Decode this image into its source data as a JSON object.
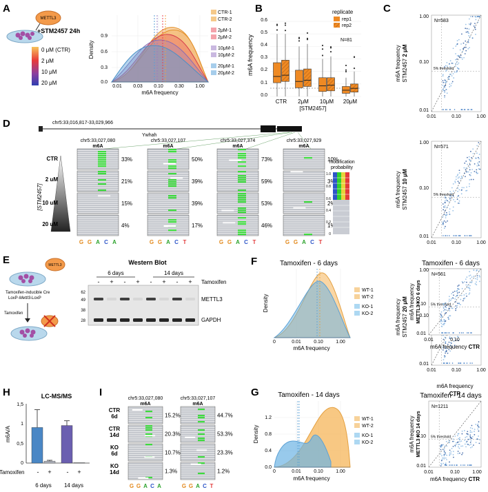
{
  "panels": {
    "A": "A",
    "B": "B",
    "C": "C",
    "D": "D",
    "E": "E",
    "F": "F",
    "G": "G",
    "H": "H",
    "I": "I"
  },
  "colors": {
    "ctr": "#f0a040",
    "d2": "#e84050",
    "d10": "#9a7cc2",
    "d20": "#5a9fd6",
    "wt": "#f5b55a",
    "ko": "#6cb4e4",
    "orange": "#ef8a24",
    "blue": "#4a87c5",
    "purple": "#6b5fb0",
    "grey": "#b4b8c2",
    "green": "#3ddc3d"
  },
  "A": {
    "enzyme": "METTL3",
    "treatment": "+STM2457 24h",
    "gradient_labels": [
      "0 μM (CTR)",
      "2 μM",
      "10 μM",
      "20 μM"
    ],
    "legend": [
      "CTR-1",
      "CTR-2",
      "2μM-1",
      "2μM-2",
      "10μM-1",
      "10μM-2",
      "20μM-1",
      "20μM-2"
    ],
    "ylabel": "Density",
    "xlabel": "m6A frequency",
    "yticks": [
      "0.0",
      "0.3",
      "0.6",
      "0.9"
    ],
    "xticks": [
      "0.01",
      "0.03",
      "0.10",
      "0.30",
      "1.00"
    ]
  },
  "B": {
    "ylabel": "m6A frequency",
    "xlabel": "[STM2457]",
    "n_label": "N=81",
    "legend_title": "replicate",
    "legend": [
      "rep1",
      "rep2"
    ],
    "categories": [
      "CTR",
      "2μM",
      "10μM",
      "20μM"
    ],
    "yticks": [
      "0.0",
      "0.1",
      "0.2",
      "0.3",
      "0.4",
      "0.5",
      "0.6"
    ],
    "chart_data": {
      "type": "box",
      "ylim": [
        0,
        0.65
      ],
      "series": [
        {
          "name": "rep1",
          "boxes": [
            {
              "lo": 0.0,
              "q1": 0.11,
              "med": 0.16,
              "q3": 0.27,
              "hi": 0.5
            },
            {
              "lo": 0.0,
              "q1": 0.07,
              "med": 0.12,
              "q3": 0.21,
              "hi": 0.4
            },
            {
              "lo": 0.0,
              "q1": 0.04,
              "med": 0.085,
              "q3": 0.15,
              "hi": 0.3
            },
            {
              "lo": 0.0,
              "q1": 0.025,
              "med": 0.05,
              "q3": 0.08,
              "hi": 0.15
            }
          ]
        },
        {
          "name": "rep2",
          "boxes": [
            {
              "lo": 0.0,
              "q1": 0.12,
              "med": 0.17,
              "q3": 0.29,
              "hi": 0.5
            },
            {
              "lo": 0.0,
              "q1": 0.08,
              "med": 0.13,
              "q3": 0.22,
              "hi": 0.42
            },
            {
              "lo": 0.0,
              "q1": 0.045,
              "med": 0.09,
              "q3": 0.15,
              "hi": 0.32
            },
            {
              "lo": 0.0,
              "q1": 0.035,
              "med": 0.065,
              "q3": 0.1,
              "hi": 0.2
            }
          ]
        }
      ]
    }
  },
  "C": {
    "ticks": [
      "0.01",
      "0.10",
      "1.00"
    ],
    "threshold": "5% threshold",
    "xlabel": "m6A frequency",
    "xlabel2": "CTR",
    "plots": [
      {
        "n": "N=583",
        "ylab": "m6A frequency",
        "ylab2": "STM2457 ",
        "ylab_b": "2 μM"
      },
      {
        "n": "N=571",
        "ylab": "m6A frequency",
        "ylab2": "STM2457 ",
        "ylab_b": "10 μM"
      },
      {
        "n": "N=584",
        "ylab": "m6A frequency",
        "ylab2": "STM2457 ",
        "ylab_b": "20 μM"
      }
    ]
  },
  "D": {
    "region": "chr5:33,016,817-33,029,966",
    "gene": "Ywhah",
    "sites": [
      "chr5:33,027,080",
      "chr5:33,027,107",
      "chr5:33,027,374",
      "chr5:33,027,929"
    ],
    "m6a": "m6A",
    "axis_label": "[STM2457]",
    "rows": [
      "CTR",
      "2 uM",
      "10 uM",
      "20 uM"
    ],
    "percents": [
      [
        "33%",
        "21%",
        "15%",
        "4%"
      ],
      [
        "50%",
        "39%",
        "39%",
        "17%"
      ],
      [
        "73%",
        "59%",
        "53%",
        "46%"
      ],
      [
        "10%",
        "3%",
        "2%",
        "1%"
      ]
    ],
    "bases": [
      [
        "G",
        "G",
        "A",
        "C",
        "A"
      ],
      [
        "G",
        "G",
        "A",
        "C",
        "T"
      ],
      [
        "G",
        "G",
        "A",
        "C",
        "T"
      ],
      [
        "G",
        "G",
        "A",
        "C",
        "T"
      ]
    ],
    "scale_title1": "modification",
    "scale_title2": "probability",
    "scale_ticks": [
      "1.0",
      "0.8",
      "0.6",
      "0.4",
      "0.2",
      "0"
    ]
  },
  "E": {
    "model": "Tamoxifen-inducible Cre",
    "model2": "LoxP-",
    "model2_i": "Mettl3",
    "model2_b": "-LoxP",
    "tamoxifen": "Tamoxifen",
    "enzyme": "METTL3",
    "blot_title": "Western Blot",
    "times": [
      "6 days",
      "14 days"
    ],
    "signs": [
      "-",
      "+",
      "-",
      "+",
      "-",
      "+",
      "-",
      "+"
    ],
    "row_label": "Tamoxifen",
    "mw": [
      "62",
      "49",
      "38",
      "28"
    ],
    "bands": [
      "METTL3",
      "GAPDH"
    ]
  },
  "F": {
    "title": "Tamoxifen - 6 days",
    "ylabel": "Density",
    "xlabel": "m6A frequency",
    "legend": [
      "WT-1",
      "WT-2",
      "KO-1",
      "KO-2"
    ],
    "xticks": [
      "0",
      "0.01",
      "0.10",
      "1.00"
    ],
    "scatter": {
      "title": "Tamoxifen - 6 days",
      "n": "N=561",
      "ylab": "m6A frequency",
      "ylab2": "METTL3 KO 6 days",
      "xlab": "m6A frequency ",
      "xlab2": "CTR",
      "ticks": [
        "0.01",
        "0.10"
      ],
      "threshold": "5% threshold"
    }
  },
  "G": {
    "title": "Tamoxifen - 14 days",
    "ylabel": "Density",
    "xlabel": "m6A frequency",
    "legend": [
      "WT-1",
      "WT-2",
      "KO-1",
      "KO-2"
    ],
    "xticks": [
      "0",
      "0.01",
      "0.10",
      "1.00"
    ],
    "yticks": [
      "0.0",
      "0.4",
      "0.8",
      "1.2"
    ],
    "scatter": {
      "title": "Tamoxifen - 14 days",
      "n": "N=1211",
      "ylab": "m6A frequency",
      "ylab2": "METTL3 KO 14 days",
      "xlab": "m6A frequency ",
      "xlab2": "CTR",
      "ticks": [
        "0.01",
        "0.10",
        "1.00"
      ],
      "threshold": "5% threshold"
    }
  },
  "H": {
    "title": "LC-MS/MS",
    "ylabel": "m6A/A",
    "yticks": [
      "0",
      "0,5",
      "1",
      "1,5"
    ],
    "signs": [
      "-",
      "+",
      "-",
      "+"
    ],
    "row_label": "Tamoxifen",
    "groups": [
      "6 days",
      "14 days"
    ],
    "chart_data": {
      "type": "bar",
      "categories": [
        "6d -",
        "6d +",
        "14d -",
        "14d +"
      ],
      "values": [
        0.9,
        0.05,
        0.95,
        0.01
      ],
      "errors": [
        0.45,
        0.02,
        0.12,
        0.0
      ],
      "ylim": [
        0,
        1.5
      ]
    }
  },
  "I": {
    "sites": [
      "chr5:33,027,080",
      "chr5:33,027,107"
    ],
    "m6a": "m6A",
    "rows": [
      [
        "CTR",
        "6d"
      ],
      [
        "CTR",
        "14d"
      ],
      [
        "KO",
        "6d"
      ],
      [
        "KO",
        "14d"
      ]
    ],
    "percents": [
      [
        "15.2%",
        "20.3%",
        "10.7%",
        "1.3%"
      ],
      [
        "44.7%",
        "53.3%",
        "23.3%",
        "1.2%"
      ]
    ],
    "bases": [
      [
        "G",
        "G",
        "A",
        "C",
        "A"
      ],
      [
        "G",
        "G",
        "A",
        "C",
        "T"
      ]
    ]
  }
}
